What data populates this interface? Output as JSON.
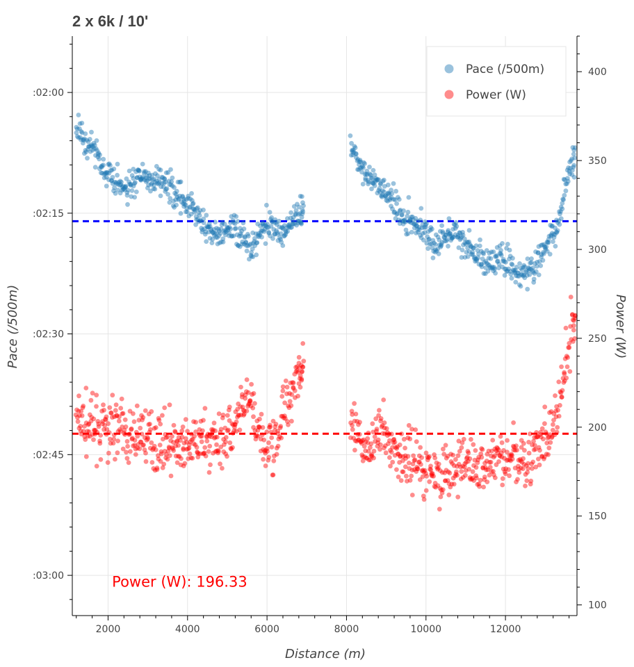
{
  "chart_data": {
    "type": "scatter",
    "title": "2 x 6k / 10'",
    "xlabel": "Distance (m)",
    "ylabel_left": "Pace (/500m)",
    "ylabel_right": "Power (W)",
    "xlim": [
      1100,
      13800
    ],
    "x_ticks": [
      2000,
      4000,
      6000,
      8000,
      10000,
      12000
    ],
    "y_left_range_seconds": [
      113,
      185
    ],
    "y_left_inverted": true,
    "y_left_ticks": [
      {
        "seconds": 120,
        "label": ":02:00"
      },
      {
        "seconds": 135,
        "label": ":02:15"
      },
      {
        "seconds": 150,
        "label": ":02:30"
      },
      {
        "seconds": 165,
        "label": ":02:45"
      },
      {
        "seconds": 180,
        "label": ":03:00"
      }
    ],
    "y_right_range": [
      94,
      420
    ],
    "y_right_ticks": [
      100,
      150,
      200,
      250,
      300,
      350,
      400
    ],
    "grid": true,
    "legend": "top-right",
    "colors": {
      "pace": "#1f77b4",
      "power": "#ff0000",
      "pace_avg_line": "#0000ff",
      "power_avg_line": "#ff0000"
    },
    "series": [
      {
        "name": "Pace (/500m)",
        "axis": "left",
        "unit": "seconds per 500m",
        "segments": [
          {
            "x": [
              1200,
              1400,
              1600,
              1800,
              2000,
              2200,
              2400,
              2600,
              2800,
              3000,
              3200,
              3400,
              3600,
              3800,
              4000,
              4200,
              4400,
              4600,
              4800,
              5000,
              5200,
              5400,
              5600,
              5800,
              6000,
              6200,
              6400,
              6600,
              6800
            ],
            "y": [
              124.5,
              126.0,
              127.0,
              128.5,
              130.5,
              131.0,
              132.0,
              131.0,
              129.5,
              130.5,
              131.0,
              131.5,
              132.0,
              133.0,
              133.5,
              135.0,
              136.5,
              137.5,
              138.0,
              137.0,
              137.0,
              138.5,
              139.5,
              137.5,
              136.5,
              137.0,
              138.0,
              136.0,
              135.0
            ]
          },
          {
            "x": [
              8100,
              8300,
              8500,
              8700,
              8900,
              9100,
              9300,
              9500,
              9700,
              9900,
              10100,
              10300,
              10500,
              10700,
              10900,
              11100,
              11300,
              11500,
              11700,
              11900,
              12100,
              12300,
              12500,
              12700,
              12900,
              13100,
              13300,
              13500,
              13700
            ],
            "y": [
              126.5,
              129.0,
              130.5,
              131.0,
              132.0,
              133.0,
              134.0,
              135.5,
              136.0,
              137.0,
              138.0,
              139.0,
              138.0,
              137.5,
              138.5,
              139.5,
              140.5,
              141.5,
              141.0,
              140.5,
              141.5,
              142.5,
              142.0,
              141.5,
              140.0,
              139.0,
              136.5,
              132.0,
              128.0
            ]
          }
        ]
      },
      {
        "name": "Power (W)",
        "axis": "right",
        "unit": "W",
        "segments": [
          {
            "x": [
              1200,
              1400,
              1600,
              1800,
              2000,
              2200,
              2400,
              2600,
              2800,
              3000,
              3200,
              3400,
              3600,
              3800,
              4000,
              4200,
              4400,
              4600,
              4800,
              5000,
              5200,
              5400,
              5600,
              5800,
              6000,
              6200,
              6400,
              6600,
              6800
            ],
            "y": [
              205,
              202,
              200,
              198,
              199,
              203,
              196,
              193,
              198,
              194,
              191,
              193,
              191,
              188,
              187,
              190,
              193,
              191,
              195,
              197,
              198,
              210,
              215,
              193,
              188,
              193,
              208,
              222,
              232
            ]
          },
          {
            "x": [
              8100,
              8300,
              8500,
              8700,
              8900,
              9100,
              9300,
              9500,
              9700,
              9900,
              10100,
              10300,
              10500,
              10700,
              10900,
              11100,
              11300,
              11500,
              11700,
              11900,
              12100,
              12300,
              12500,
              12700,
              12900,
              13100,
              13300,
              13500,
              13700
            ],
            "y": [
              200,
              192,
              188,
              193,
              198,
              190,
              187,
              181,
              182,
              178,
              175,
              175,
              173,
              175,
              178,
              180,
              177,
              179,
              182,
              185,
              180,
              183,
              183,
              185,
              188,
              195,
              208,
              228,
              258
            ]
          }
        ]
      }
    ],
    "reference_lines": [
      {
        "axis": "left",
        "seconds": 136
      },
      {
        "axis": "right",
        "value": 196.33
      }
    ],
    "annotation": {
      "text": "Power (W): 196.33",
      "x": 2100,
      "power": 113
    }
  }
}
